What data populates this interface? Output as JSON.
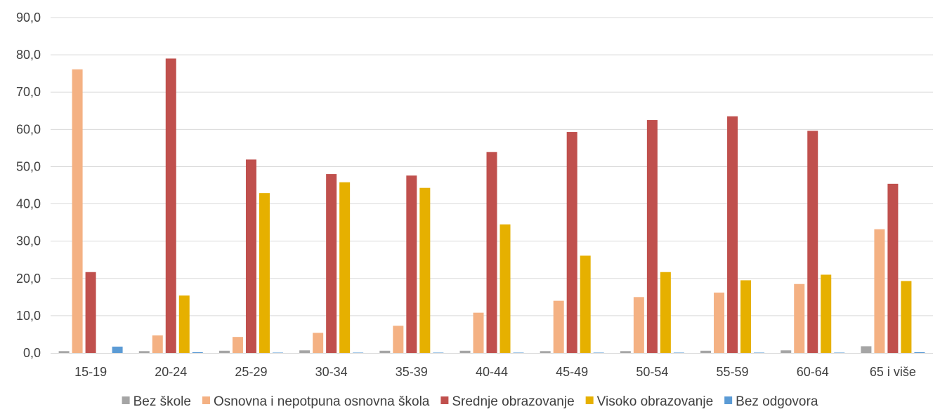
{
  "chart_data": {
    "type": "bar",
    "categories": [
      "15-19",
      "20-24",
      "25-29",
      "30-34",
      "35-39",
      "40-44",
      "45-49",
      "50-54",
      "55-59",
      "60-64",
      "65 i više"
    ],
    "ylim": [
      0,
      90
    ],
    "yticks": [
      "0,0",
      "10,0",
      "20,0",
      "30,0",
      "40,0",
      "50,0",
      "60,0",
      "70,0",
      "80,0",
      "90,0"
    ],
    "grid": true,
    "legend_position": "bottom",
    "series": [
      {
        "name": "Bez škole",
        "color": "#a5a5a5",
        "values": [
          0.5,
          0.5,
          0.6,
          0.7,
          0.6,
          0.6,
          0.5,
          0.5,
          0.6,
          0.7,
          1.8
        ]
      },
      {
        "name": "Osnovna i nepotpuna osnovna škola",
        "color": "#f4b183",
        "values": [
          76.1,
          4.7,
          4.3,
          5.4,
          7.3,
          10.8,
          14.0,
          15.0,
          16.2,
          18.5,
          33.2
        ]
      },
      {
        "name": "Srednje obrazovanje",
        "color": "#c0504d",
        "values": [
          21.7,
          79.0,
          51.9,
          48.0,
          47.6,
          53.9,
          59.3,
          62.5,
          63.5,
          59.6,
          45.4
        ]
      },
      {
        "name": "Visoko obrazovanje",
        "color": "#e6b000",
        "values": [
          0.0,
          15.4,
          42.9,
          45.8,
          44.3,
          34.5,
          26.1,
          21.7,
          19.5,
          21.0,
          19.3
        ]
      },
      {
        "name": "Bez odgovora",
        "color": "#5b9bd5",
        "values": [
          1.7,
          0.2,
          0.1,
          0.1,
          0.1,
          0.1,
          0.1,
          0.1,
          0.1,
          0.1,
          0.2
        ]
      }
    ]
  }
}
